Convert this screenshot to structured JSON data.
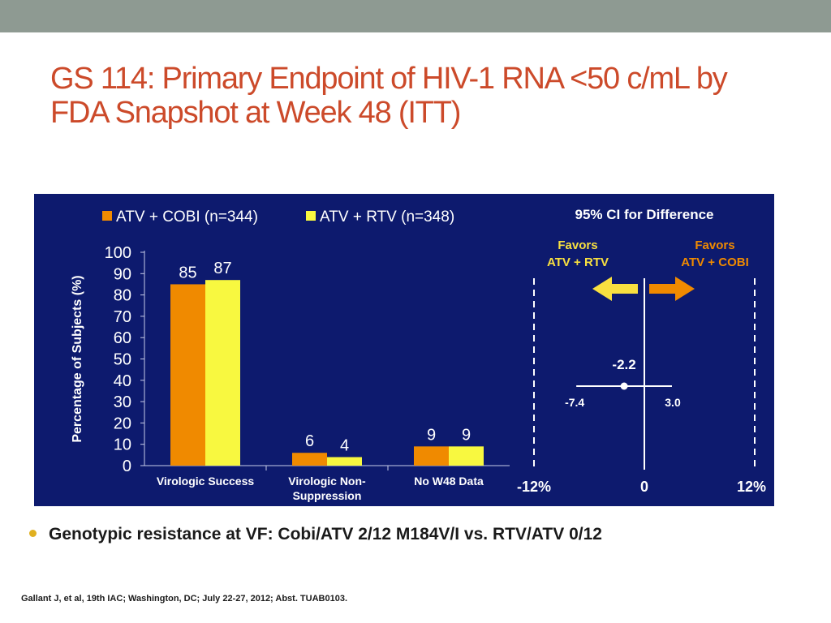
{
  "slide": {
    "title_line1": "GS 114: Primary Endpoint of HIV-1 RNA <50 c/mL by",
    "title_line2": "FDA Snapshot at Week 48 (ITT)",
    "bullet": "Genotypic resistance at VF: Cobi/ATV 2/12 M184V/I vs. RTV/ATV  0/12",
    "citation": "Gallant J, et al, 19th IAC; Washington, DC; July 22-27, 2012; Abst. TUAB0103."
  },
  "colors": {
    "panel_bg": "#0d1a6e",
    "atv_cobi": "#f08a00",
    "atv_rtv": "#f8f840",
    "title": "#cc4a2a",
    "favors_cobi": "#f08a00",
    "favors_rtv": "#f8e040"
  },
  "chart_data": [
    {
      "type": "bar",
      "ylabel": "Percentage of Subjects (%)",
      "ylim": [
        0,
        100
      ],
      "yticks": [
        0,
        10,
        20,
        30,
        40,
        50,
        60,
        70,
        80,
        90,
        100
      ],
      "categories": [
        [
          "Virologic Success"
        ],
        [
          "Virologic Non-",
          "Suppression"
        ],
        [
          "No W48 Data"
        ]
      ],
      "series": [
        {
          "name": "ATV + COBI (n=344)",
          "values": [
            85,
            6,
            9
          ]
        },
        {
          "name": "ATV + RTV (n=348)",
          "values": [
            87,
            4,
            9
          ]
        }
      ],
      "legend_position": "top"
    },
    {
      "type": "forest",
      "title": "95% CI for Difference",
      "xlim": [
        -12,
        12
      ],
      "xticks": [
        "-12%",
        "0",
        "12%"
      ],
      "point": -2.2,
      "point_label": "-2.2",
      "ci": [
        -7.4,
        3.0
      ],
      "ci_labels": [
        "-7.4",
        "3.0"
      ],
      "favors_left": [
        "Favors",
        "ATV + RTV"
      ],
      "favors_right": [
        "Favors",
        "ATV + COBI"
      ]
    }
  ]
}
